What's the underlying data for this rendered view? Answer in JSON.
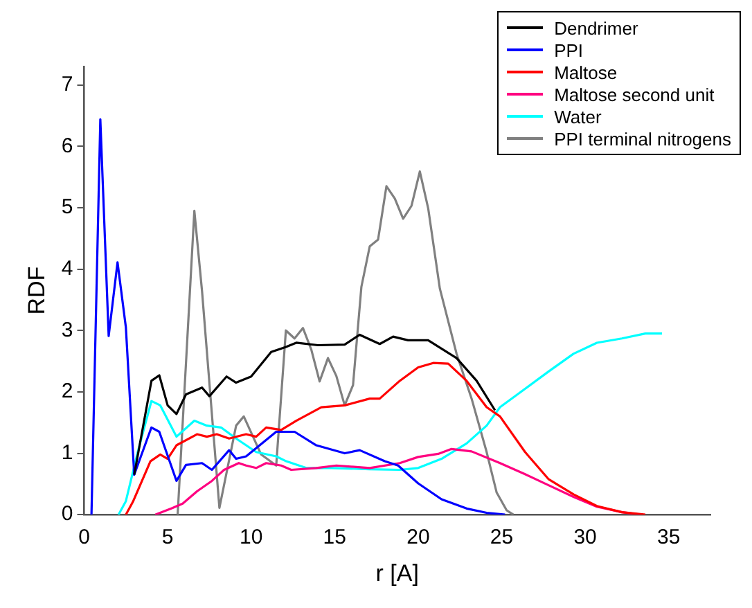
{
  "chart_data": {
    "type": "line",
    "xlabel": "r [A]",
    "ylabel": "RDF",
    "xlim": [
      0,
      37.5
    ],
    "ylim": [
      0,
      7.3
    ],
    "xticks": [
      0,
      5,
      10,
      15,
      20,
      25,
      30,
      35
    ],
    "yticks": [
      0,
      1,
      2,
      3,
      4,
      5,
      6,
      7
    ],
    "grid": false,
    "legend": "top right",
    "marker": "none",
    "line_style": "solid",
    "series": [
      {
        "name": "Dendrimer",
        "color": "#000000",
        "x": [
          3.0,
          4.03,
          4.5,
          5.0,
          5.53,
          6.1,
          7.06,
          7.5,
          8.53,
          9.1,
          10.0,
          11.2,
          12.06,
          12.7,
          14.0,
          15.6,
          16.5,
          17.7,
          18.5,
          19.4,
          20.6,
          22.3,
          23.5,
          24.6
        ],
        "values": [
          0.65,
          2.18,
          2.27,
          1.78,
          1.64,
          1.96,
          2.07,
          1.93,
          2.25,
          2.15,
          2.25,
          2.65,
          2.73,
          2.8,
          2.76,
          2.77,
          2.93,
          2.78,
          2.9,
          2.84,
          2.84,
          2.55,
          2.18,
          1.7
        ]
      },
      {
        "name": "PPI",
        "color": "#0000ff",
        "x": [
          0.44,
          0.97,
          1.47,
          2.0,
          2.5,
          3.0,
          4.03,
          4.5,
          5.53,
          6.1,
          7.06,
          7.65,
          8.68,
          9.1,
          9.7,
          11.5,
          12.6,
          13.9,
          15.6,
          16.5,
          18.0,
          18.8,
          20.0,
          21.4,
          22.9,
          24.1,
          25.2
        ],
        "values": [
          0,
          6.44,
          2.91,
          4.11,
          3.05,
          0.65,
          1.42,
          1.35,
          0.55,
          0.81,
          0.84,
          0.73,
          1.05,
          0.91,
          0.95,
          1.35,
          1.35,
          1.13,
          1.0,
          1.05,
          0.87,
          0.8,
          0.51,
          0.25,
          0.1,
          0.03,
          0
        ]
      },
      {
        "name": "Maltose",
        "color": "#ff0000",
        "x": [
          2.5,
          2.94,
          3.97,
          4.56,
          5.0,
          5.53,
          6.76,
          7.35,
          7.94,
          8.68,
          9.7,
          10.3,
          10.9,
          11.8,
          12.7,
          14.2,
          15.6,
          17.1,
          17.7,
          18.9,
          20.0,
          20.9,
          21.8,
          22.9,
          24.1,
          24.9,
          26.4,
          27.8,
          29.3,
          30.7,
          32.2,
          33.6
        ],
        "values": [
          0,
          0.22,
          0.87,
          0.98,
          0.91,
          1.13,
          1.31,
          1.27,
          1.31,
          1.24,
          1.31,
          1.27,
          1.42,
          1.38,
          1.53,
          1.75,
          1.78,
          1.89,
          1.89,
          2.18,
          2.4,
          2.47,
          2.46,
          2.18,
          1.75,
          1.6,
          1.02,
          0.58,
          0.33,
          0.14,
          0.04,
          0
        ]
      },
      {
        "name": "Maltose second unit",
        "color": "#ff0080",
        "x": [
          4.26,
          5.3,
          5.9,
          6.76,
          7.65,
          8.38,
          9.26,
          9.7,
          10.3,
          10.9,
          11.8,
          12.4,
          13.9,
          15.1,
          17.1,
          18.9,
          20.0,
          21.2,
          22.0,
          23.2,
          24.9,
          26.4,
          27.8,
          29.3,
          30.7,
          32.2,
          33.3
        ],
        "values": [
          0,
          0.11,
          0.18,
          0.38,
          0.55,
          0.73,
          0.84,
          0.8,
          0.76,
          0.84,
          0.8,
          0.73,
          0.76,
          0.8,
          0.76,
          0.84,
          0.94,
          0.99,
          1.07,
          1.03,
          0.84,
          0.66,
          0.48,
          0.29,
          0.13,
          0.04,
          0
        ]
      },
      {
        "name": "Water",
        "color": "#00ffff",
        "x": [
          2.06,
          2.5,
          3.24,
          4.03,
          4.56,
          5.53,
          6.6,
          7.35,
          8.2,
          9.1,
          10.3,
          11.5,
          12.1,
          13.3,
          14.8,
          17.1,
          18.9,
          20.0,
          21.4,
          22.9,
          24.1,
          24.9,
          26.4,
          27.8,
          29.3,
          30.7,
          32.2,
          33.6,
          34.6
        ],
        "values": [
          0,
          0.22,
          1.05,
          1.85,
          1.78,
          1.27,
          1.53,
          1.45,
          1.42,
          1.24,
          1.02,
          0.95,
          0.87,
          0.76,
          0.76,
          0.74,
          0.73,
          0.76,
          0.91,
          1.16,
          1.45,
          1.75,
          2.05,
          2.33,
          2.62,
          2.8,
          2.87,
          2.95,
          2.95
        ]
      },
      {
        "name": "PPI terminal nitrogens",
        "color": "#808080",
        "x": [
          5.6,
          6.6,
          7.06,
          8.1,
          9.1,
          9.56,
          10.6,
          11.5,
          12.08,
          12.6,
          13.1,
          13.6,
          14.1,
          14.6,
          15.1,
          15.6,
          16.1,
          16.6,
          17.1,
          17.6,
          18.1,
          18.6,
          19.1,
          19.6,
          20.1,
          20.6,
          21.3,
          22.3,
          23.2,
          24.1,
          24.7,
          25.3,
          25.7
        ],
        "values": [
          0,
          4.95,
          3.64,
          0.11,
          1.45,
          1.6,
          0.98,
          0.8,
          3.0,
          2.87,
          3.04,
          2.69,
          2.17,
          2.55,
          2.26,
          1.78,
          2.11,
          3.71,
          4.37,
          4.48,
          5.35,
          5.15,
          4.82,
          5.03,
          5.59,
          4.99,
          3.68,
          2.62,
          1.89,
          1.02,
          0.36,
          0.07,
          0
        ]
      }
    ]
  }
}
